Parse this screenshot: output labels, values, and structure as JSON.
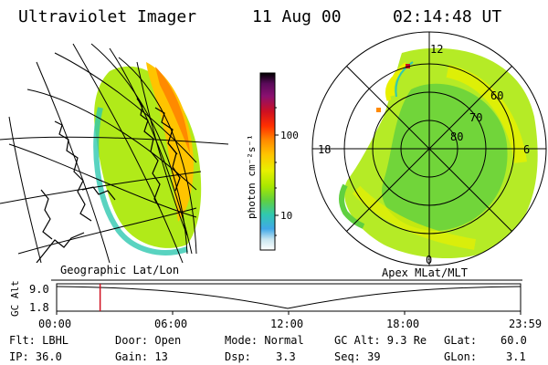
{
  "header": {
    "instrument": "Ultraviolet Imager",
    "date": "11 Aug 00",
    "time": "02:14:48 UT"
  },
  "left_map": {
    "caption": "Geographic Lat/Lon"
  },
  "right_map": {
    "caption": "Apex MLat/MLT",
    "mlt_labels": [
      "12",
      "18",
      "6",
      "0"
    ],
    "lat_labels": [
      "60",
      "70",
      "80"
    ]
  },
  "colorbar": {
    "label": "photon cm⁻²s⁻¹",
    "ticks": [
      "100",
      "10"
    ],
    "colors": [
      "#000000",
      "#5a0a5a",
      "#8a1070",
      "#d01020",
      "#ff3000",
      "#ff8a00",
      "#ffc400",
      "#e8f000",
      "#a8e800",
      "#60d040",
      "#30c8b0",
      "#40a8e8",
      "#c8e6f0",
      "#ffffff"
    ]
  },
  "timeline": {
    "ylabel": "GC Alt",
    "y_ticks": [
      "9.0",
      "1.8"
    ],
    "x_ticks": [
      "00:00",
      "06:00",
      "12:00",
      "18:00",
      "23:59"
    ],
    "current_time_hours": 2.25
  },
  "info": {
    "filter": "Flt: LBHL",
    "ip": "IP: 36.0",
    "door": "Door: Open",
    "gain": "Gain: 13",
    "mode": "Mode: Normal",
    "dsp_label": "Dsp:",
    "dsp_value": "3.3",
    "gc_alt": "GC Alt: 9.3 Re",
    "seq": "Seq: 39",
    "glat_label": "GLat:",
    "glat_value": "60.0",
    "glon_label": "GLon:",
    "glon_value": "3.1"
  }
}
